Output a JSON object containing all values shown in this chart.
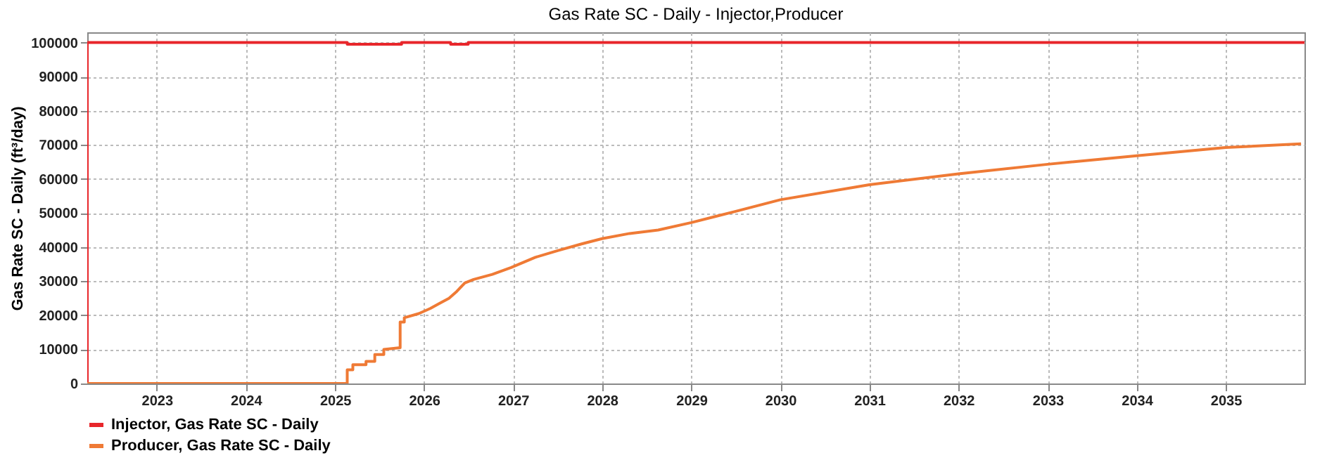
{
  "chart_data": {
    "type": "line",
    "title": "Gas Rate SC - Daily - Injector,Producer",
    "ylabel": "Gas Rate SC - Daily (ft³/day)",
    "xlim": [
      "2022-03-22",
      "2035-11-20"
    ],
    "xticks": [
      "2023",
      "2024",
      "2025",
      "2026",
      "2027",
      "2028",
      "2029",
      "2030",
      "2031",
      "2032",
      "2033",
      "2034",
      "2035"
    ],
    "ylim": [
      0,
      103000
    ],
    "yticks": [
      0,
      10000,
      20000,
      30000,
      40000,
      50000,
      60000,
      70000,
      80000,
      90000,
      100000
    ],
    "grid": true,
    "legend": "bottom",
    "series": [
      {
        "name": "Injector, Gas Rate SC - Daily",
        "color": "#e8262b",
        "x": [
          "2022-03-22",
          "2022-03-22",
          "2025-02-20",
          "2025-02-20",
          "2025-10-01",
          "2025-10-01",
          "2026-04-20",
          "2026-04-20",
          "2026-07-01",
          "2026-07-01",
          "2035-11-20"
        ],
        "values": [
          0,
          100000,
          100000,
          99500,
          99500,
          100000,
          100000,
          99500,
          99500,
          100000,
          100000
        ]
      },
      {
        "name": "Producer, Gas Rate SC - Daily",
        "color": "#ef7a35",
        "x": [
          "2022-03-22",
          "2025-02-20",
          "2025-02-20",
          "2025-03-15",
          "2025-03-15",
          "2025-05-08",
          "2025-05-08",
          "2025-06-13",
          "2025-06-13",
          "2025-07-20",
          "2025-07-20",
          "2025-09-25",
          "2025-09-25",
          "2025-10-12",
          "2025-10-12",
          "2025-12-10",
          "2026-01-26",
          "2026-03-05",
          "2026-04-13",
          "2026-05-15",
          "2026-06-17",
          "2026-07-23",
          "2026-10-08",
          "2026-12-24",
          "2027-04-02",
          "2027-07-05",
          "2027-10-12",
          "2028-01-01",
          "2028-04-23",
          "2028-08-18",
          "2029-01-01",
          "2029-07-02",
          "2030-01-01",
          "2031-01-01",
          "2032-01-01",
          "2033-01-01",
          "2034-01-01",
          "2035-01-01",
          "2035-11-06"
        ],
        "values": [
          0,
          0,
          4000,
          4000,
          5500,
          5500,
          6500,
          6500,
          8500,
          8500,
          10000,
          10500,
          18000,
          18000,
          19300,
          20500,
          22000,
          23500,
          25000,
          27000,
          29500,
          30500,
          32000,
          34000,
          37000,
          39000,
          41000,
          42500,
          44000,
          45000,
          47200,
          50500,
          53900,
          58300,
          61500,
          64300,
          66800,
          69200,
          70300
        ]
      }
    ]
  }
}
